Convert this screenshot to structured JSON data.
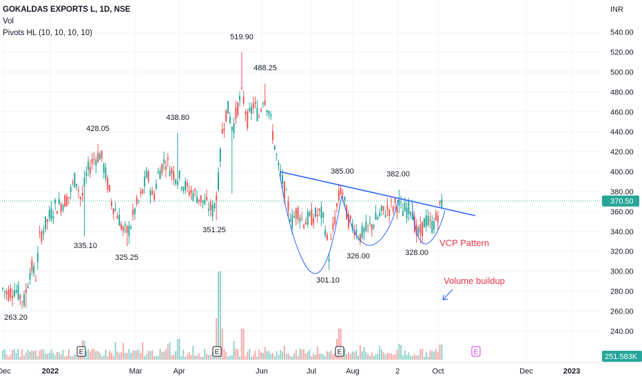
{
  "legend": {
    "title": "GOKALDAS EXPORTS L, 1D, NSE",
    "vol": "Vol",
    "pivots": "Pivots HL (10, 10, 10, 10)"
  },
  "chart_data": {
    "type": "candlestick",
    "currency_label": "INR",
    "ylim": [
      225,
      548
    ],
    "y_ticks": [
      240,
      260,
      280,
      300,
      320,
      340,
      360,
      380,
      400,
      420,
      440,
      460,
      480,
      500,
      520,
      540
    ],
    "x_ticks": [
      "Dec",
      "2022",
      "Mar",
      "Apr",
      "Jun",
      "Jul",
      "Aug",
      "2",
      "Oct",
      "Dec",
      "2023"
    ],
    "last_price": "370.50",
    "last_volume": "251.583K",
    "pivot_labels": [
      "263.20",
      "428.05",
      "335.10",
      "325.25",
      "438.80",
      "351.25",
      "519.90",
      "488.25",
      "385.00",
      "301.10",
      "326.00",
      "382.00",
      "328.00"
    ],
    "annotations": [
      "VCP Pattern",
      "Volume buildup"
    ],
    "earnings_markers": [
      "E",
      "E",
      "E",
      "E"
    ],
    "colors": {
      "up": "#26a69a",
      "down": "#ef5350",
      "trendline": "#2962ff",
      "annotation": "#e8334a",
      "last_price_badge": "#26a69a"
    },
    "grid": true
  }
}
